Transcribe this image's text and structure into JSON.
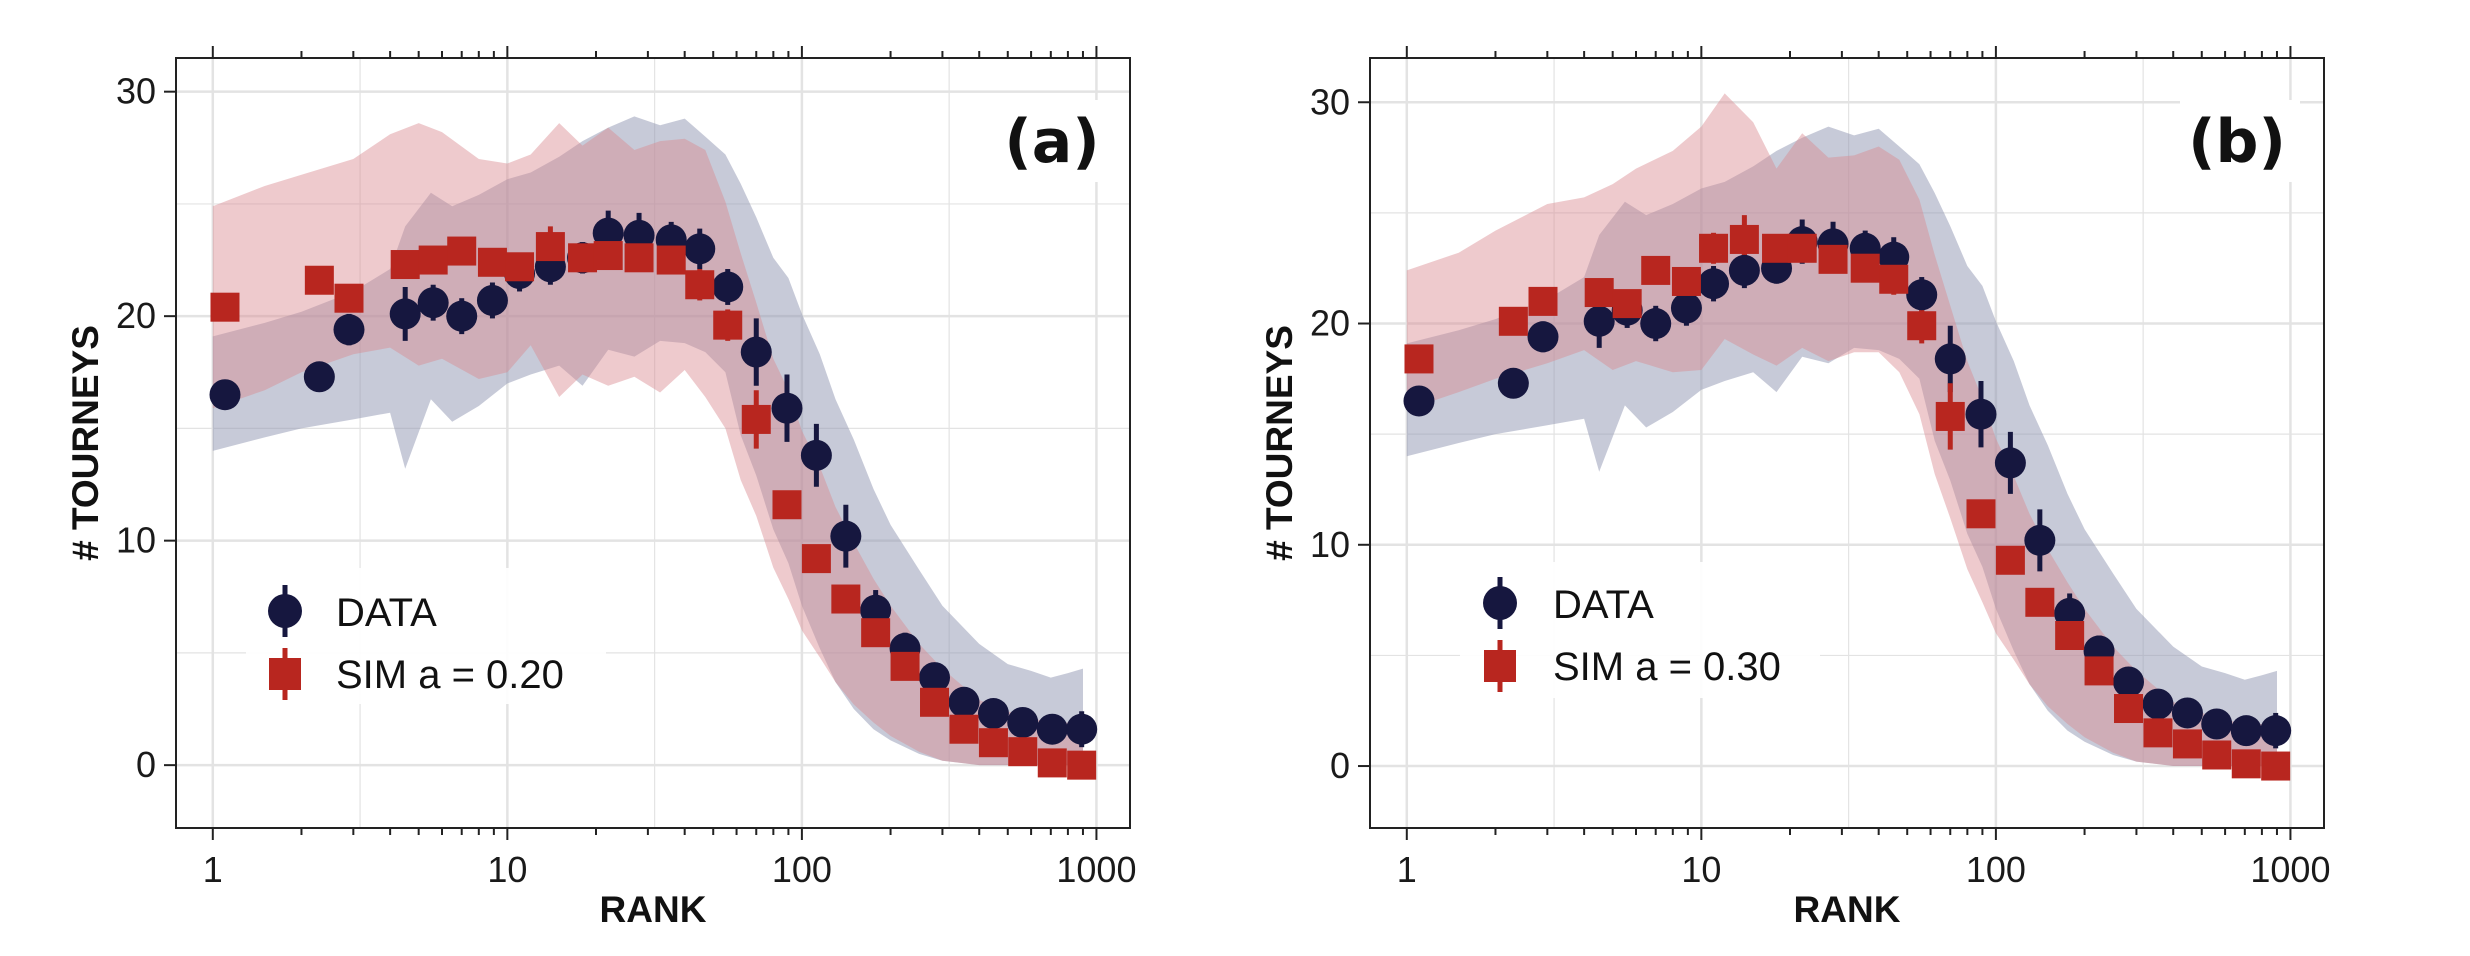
{
  "figure": {
    "colors": {
      "data": "#16173f",
      "sim": "#b8261f",
      "data_band": "#8f96b2",
      "sim_band": "#d98991",
      "grid": "#e3e3e3",
      "frame": "#222222"
    }
  },
  "chart_data": [
    {
      "type": "scatter",
      "panel_label": "(a)",
      "xlabel": "RANK",
      "ylabel": "# TOURNEYS",
      "xscale": "log",
      "xlim": [
        0.75,
        1300
      ],
      "ylim": [
        -2.8,
        31.5
      ],
      "xticks": [
        1,
        10,
        100,
        1000
      ],
      "xtick_labels": [
        "1",
        "10",
        "100",
        "1000"
      ],
      "yticks": [
        0,
        10,
        20,
        30
      ],
      "ytick_labels": [
        "0",
        "10",
        "20",
        "30"
      ],
      "grid": true,
      "legend_position": "bottom-left",
      "series": [
        {
          "name": "DATA",
          "marker": "circle",
          "x": [
            1.1,
            2.3,
            2.9,
            4.5,
            5.6,
            7.0,
            8.9,
            11,
            14,
            18,
            22,
            28,
            36,
            45,
            56,
            70,
            89,
            112,
            141,
            178,
            224,
            282,
            355,
            447,
            562,
            708,
            891
          ],
          "y": [
            16.5,
            17.3,
            19.4,
            20.1,
            20.6,
            20.0,
            20.7,
            21.9,
            22.2,
            22.6,
            23.7,
            23.6,
            23.4,
            23.0,
            21.3,
            18.4,
            15.9,
            13.8,
            10.2,
            6.9,
            5.2,
            3.9,
            2.8,
            2.3,
            1.9,
            1.6,
            1.6
          ],
          "err": [
            0.3,
            0.5,
            0.7,
            1.2,
            0.8,
            0.8,
            0.8,
            0.8,
            0.8,
            0.7,
            1.0,
            1.0,
            0.8,
            0.9,
            0.8,
            1.5,
            1.5,
            1.4,
            1.4,
            0.9,
            0.7,
            0.5,
            0.5,
            0.5,
            0.4,
            0.4,
            0.8
          ]
        },
        {
          "name": "SIM a = 0.20",
          "marker": "square",
          "x": [
            1.1,
            2.3,
            2.9,
            4.5,
            5.6,
            7.0,
            8.9,
            11,
            14,
            18,
            22,
            28,
            36,
            45,
            56,
            70,
            89,
            112,
            141,
            178,
            224,
            282,
            355,
            447,
            562,
            708,
            891
          ],
          "y": [
            20.4,
            21.6,
            20.8,
            22.3,
            22.5,
            22.9,
            22.4,
            22.2,
            23.1,
            22.6,
            22.7,
            22.6,
            22.5,
            21.4,
            19.6,
            15.4,
            11.6,
            9.2,
            7.4,
            5.9,
            4.4,
            2.8,
            1.6,
            1.0,
            0.6,
            0.1,
            0.0
          ],
          "err": [
            0.3,
            0.3,
            0.3,
            0.3,
            0.3,
            0.3,
            0.3,
            0.3,
            0.9,
            0.4,
            0.4,
            0.3,
            0.3,
            0.7,
            0.7,
            1.3,
            0.6,
            0.5,
            0.5,
            0.4,
            0.4,
            0.4,
            0.3,
            0.3,
            0.3,
            0.2,
            0.2
          ]
        }
      ],
      "bands": [
        {
          "name": "DATA",
          "x": [
            1,
            1.5,
            2,
            3,
            4,
            4.5,
            5.5,
            6.5,
            8,
            10,
            12,
            15,
            18,
            22,
            27,
            33,
            40,
            47,
            55,
            62,
            70,
            80,
            90,
            100,
            115,
            130,
            150,
            175,
            200,
            250,
            300,
            400,
            500,
            600,
            700,
            800,
            900
          ],
          "lower": [
            14.0,
            14.6,
            15.0,
            15.4,
            15.7,
            13.2,
            16.3,
            15.3,
            16.0,
            17.0,
            17.4,
            17.8,
            16.9,
            18.5,
            18.2,
            18.9,
            18.8,
            18.4,
            17.5,
            14.7,
            12.9,
            10.5,
            9.0,
            7.1,
            5.2,
            3.7,
            2.5,
            1.6,
            1.1,
            0.5,
            0.2,
            0.0,
            0.0,
            0.0,
            0.0,
            0.0,
            0.0
          ],
          "upper": [
            19.1,
            19.7,
            20.2,
            21.1,
            22.1,
            24.0,
            25.5,
            24.9,
            25.4,
            26.1,
            26.4,
            27.1,
            27.8,
            28.4,
            28.9,
            28.5,
            28.8,
            28.0,
            27.2,
            25.9,
            24.4,
            22.6,
            21.7,
            20.1,
            18.3,
            16.3,
            14.5,
            12.3,
            10.7,
            8.7,
            7.1,
            5.4,
            4.5,
            4.2,
            3.9,
            4.1,
            4.3
          ]
        },
        {
          "name": "SIM a = 0.20",
          "x": [
            1,
            1.5,
            2,
            3,
            4,
            5,
            6,
            8,
            10,
            12,
            15,
            18,
            22,
            27,
            33,
            40,
            47,
            55,
            62,
            70,
            80,
            90,
            100,
            115,
            130,
            150,
            175,
            200,
            250,
            300,
            400,
            500,
            600,
            700,
            800,
            900
          ],
          "lower": [
            15.9,
            16.7,
            17.5,
            18.3,
            18.6,
            17.8,
            18.1,
            17.2,
            17.5,
            18.7,
            16.4,
            17.4,
            16.9,
            17.3,
            16.6,
            17.6,
            16.4,
            15.0,
            12.7,
            11.1,
            8.8,
            7.4,
            6.0,
            4.8,
            3.7,
            2.7,
            1.9,
            1.3,
            0.6,
            0.2,
            0.0,
            0.0,
            0.0,
            0.0,
            0.0,
            0.0
          ],
          "upper": [
            24.9,
            25.8,
            26.3,
            27.0,
            28.1,
            28.6,
            28.2,
            27.0,
            26.8,
            27.2,
            28.6,
            27.6,
            28.4,
            27.4,
            27.8,
            27.9,
            27.4,
            25.1,
            22.8,
            20.6,
            18.1,
            16.7,
            14.9,
            13.3,
            11.5,
            9.9,
            8.3,
            7.1,
            5.4,
            4.3,
            2.9,
            2.4,
            2.1,
            1.9,
            1.9,
            1.9
          ]
        }
      ]
    },
    {
      "type": "scatter",
      "panel_label": "(b)",
      "xlabel": "RANK",
      "ylabel": "# TOURNEYS",
      "xscale": "log",
      "xlim": [
        0.75,
        1300
      ],
      "ylim": [
        -2.8,
        32.0
      ],
      "xticks": [
        1,
        10,
        100,
        1000
      ],
      "xtick_labels": [
        "1",
        "10",
        "100",
        "1000"
      ],
      "yticks": [
        0,
        10,
        20,
        30
      ],
      "ytick_labels": [
        "0",
        "10",
        "20",
        "30"
      ],
      "grid": true,
      "legend_position": "bottom-left",
      "series": [
        {
          "name": "DATA",
          "marker": "circle",
          "x": [
            1.1,
            2.3,
            2.9,
            4.5,
            5.6,
            7.0,
            8.9,
            11,
            14,
            18,
            22,
            28,
            36,
            45,
            56,
            70,
            89,
            112,
            141,
            178,
            224,
            282,
            355,
            447,
            562,
            708,
            891
          ],
          "y": [
            16.5,
            17.3,
            19.4,
            20.1,
            20.6,
            20.0,
            20.7,
            21.8,
            22.4,
            22.5,
            23.7,
            23.6,
            23.4,
            23.0,
            21.3,
            18.4,
            15.9,
            13.7,
            10.2,
            6.9,
            5.2,
            3.8,
            2.8,
            2.4,
            1.9,
            1.6,
            1.6
          ],
          "err": [
            0.3,
            0.5,
            0.7,
            1.2,
            0.8,
            0.8,
            0.8,
            0.8,
            0.8,
            0.7,
            1.0,
            1.0,
            0.8,
            0.9,
            0.8,
            1.5,
            1.5,
            1.4,
            1.4,
            0.9,
            0.7,
            0.5,
            0.5,
            0.5,
            0.4,
            0.4,
            0.8
          ]
        },
        {
          "name": "SIM a = 0.30",
          "marker": "square",
          "x": [
            1.1,
            2.3,
            2.9,
            4.5,
            5.6,
            7.0,
            8.9,
            11,
            14,
            18,
            22,
            28,
            36,
            45,
            56,
            70,
            89,
            112,
            141,
            178,
            224,
            282,
            355,
            447,
            562,
            708,
            891
          ],
          "y": [
            18.4,
            20.1,
            21.0,
            21.4,
            20.9,
            22.4,
            21.9,
            23.4,
            23.8,
            23.4,
            23.4,
            22.9,
            22.5,
            22.0,
            19.9,
            15.8,
            11.4,
            9.3,
            7.4,
            5.9,
            4.3,
            2.6,
            1.5,
            1.0,
            0.5,
            0.1,
            0.0
          ],
          "err": [
            0.3,
            0.4,
            0.4,
            0.4,
            0.3,
            0.3,
            0.3,
            0.7,
            1.1,
            0.3,
            0.3,
            0.3,
            0.4,
            0.7,
            0.8,
            1.5,
            0.6,
            0.5,
            0.5,
            0.4,
            0.4,
            0.4,
            0.3,
            0.3,
            0.3,
            0.2,
            0.2
          ]
        }
      ],
      "bands": [
        {
          "name": "DATA",
          "x": [
            1,
            1.5,
            2,
            3,
            4,
            4.5,
            5.5,
            6.5,
            8,
            10,
            12,
            15,
            18,
            22,
            27,
            33,
            40,
            47,
            55,
            62,
            70,
            80,
            90,
            100,
            115,
            130,
            150,
            175,
            200,
            250,
            300,
            400,
            500,
            600,
            700,
            800,
            900
          ],
          "lower": [
            14.0,
            14.6,
            15.0,
            15.4,
            15.7,
            13.3,
            16.3,
            15.3,
            16.0,
            17.0,
            17.4,
            17.8,
            16.9,
            18.5,
            18.2,
            18.9,
            18.8,
            18.4,
            17.5,
            14.7,
            12.9,
            10.5,
            9.0,
            7.1,
            5.2,
            3.7,
            2.5,
            1.6,
            1.1,
            0.5,
            0.2,
            0.0,
            0.0,
            0.0,
            0.0,
            0.0,
            0.0
          ],
          "upper": [
            19.1,
            19.7,
            20.2,
            21.1,
            22.1,
            24.0,
            25.5,
            24.9,
            25.4,
            26.1,
            26.4,
            27.1,
            27.8,
            28.4,
            28.9,
            28.5,
            28.8,
            28.0,
            27.2,
            25.9,
            24.4,
            22.6,
            21.7,
            20.1,
            18.3,
            16.3,
            14.5,
            12.3,
            10.7,
            8.7,
            7.1,
            5.4,
            4.5,
            4.2,
            3.9,
            4.1,
            4.3
          ]
        },
        {
          "name": "SIM a = 0.30",
          "x": [
            1,
            1.5,
            2,
            3,
            4,
            5,
            6,
            8,
            10,
            12,
            15,
            18,
            22,
            27,
            33,
            40,
            47,
            55,
            62,
            70,
            80,
            90,
            100,
            115,
            130,
            150,
            175,
            200,
            250,
            300,
            400,
            500,
            600,
            700,
            800,
            900
          ],
          "lower": [
            16.1,
            16.9,
            17.5,
            18.2,
            18.8,
            17.9,
            18.3,
            17.8,
            17.9,
            19.3,
            18.6,
            18.1,
            18.9,
            18.3,
            18.7,
            18.7,
            17.8,
            15.9,
            13.2,
            11.2,
            8.9,
            7.4,
            6.0,
            4.8,
            3.7,
            2.7,
            1.9,
            1.3,
            0.6,
            0.2,
            0.0,
            0.0,
            0.0,
            0.0,
            0.0,
            0.0
          ],
          "upper": [
            22.4,
            23.2,
            24.2,
            25.4,
            25.7,
            26.3,
            27.0,
            27.8,
            28.9,
            30.4,
            29.1,
            27.0,
            28.6,
            27.5,
            27.6,
            28.0,
            27.4,
            25.6,
            23.1,
            20.8,
            18.3,
            16.6,
            14.8,
            13.1,
            11.4,
            9.8,
            8.3,
            7.1,
            5.4,
            4.3,
            2.9,
            2.4,
            2.1,
            1.9,
            1.9,
            1.9
          ]
        }
      ]
    }
  ]
}
